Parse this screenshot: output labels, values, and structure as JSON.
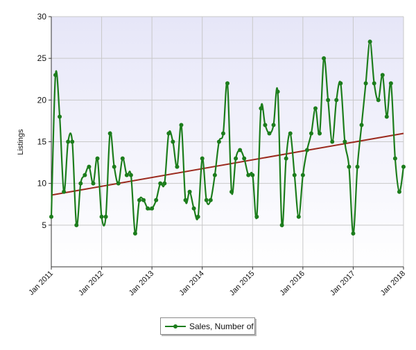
{
  "chart_data": {
    "type": "line",
    "title": "",
    "xlabel": "",
    "ylabel": "Listings",
    "ylim": [
      0,
      30
    ],
    "yticks": [
      5,
      10,
      15,
      20,
      25,
      30
    ],
    "xlim": [
      "2011-01",
      "2018-01"
    ],
    "xtick_labels": [
      "Jan 2011",
      "Jan 2012",
      "Jan 2013",
      "Jan 2014",
      "Jan 2015",
      "Jan 2016",
      "Jan 2017",
      "Jan 2018"
    ],
    "grid": true,
    "legend_position": "bottom-center",
    "series": [
      {
        "name": "Sales, Number of",
        "color": "#1c7d1c",
        "x": [
          "2011-01",
          "2011-02",
          "2011-03",
          "2011-04",
          "2011-05",
          "2011-06",
          "2011-07",
          "2011-08",
          "2011-09",
          "2011-10",
          "2011-11",
          "2011-12",
          "2012-01",
          "2012-02",
          "2012-03",
          "2012-04",
          "2012-05",
          "2012-06",
          "2012-07",
          "2012-08",
          "2012-09",
          "2012-10",
          "2012-11",
          "2012-12",
          "2013-01",
          "2013-02",
          "2013-03",
          "2013-04",
          "2013-05",
          "2013-06",
          "2013-07",
          "2013-08",
          "2013-09",
          "2013-10",
          "2013-11",
          "2013-12",
          "2014-01",
          "2014-02",
          "2014-03",
          "2014-04",
          "2014-05",
          "2014-06",
          "2014-07",
          "2014-08",
          "2014-09",
          "2014-10",
          "2014-11",
          "2014-12",
          "2015-01",
          "2015-02",
          "2015-03",
          "2015-04",
          "2015-05",
          "2015-06",
          "2015-07",
          "2015-08",
          "2015-09",
          "2015-10",
          "2015-11",
          "2015-12",
          "2016-01",
          "2016-02",
          "2016-03",
          "2016-04",
          "2016-05",
          "2016-06",
          "2016-07",
          "2016-08",
          "2016-09",
          "2016-10",
          "2016-11",
          "2016-12",
          "2017-01",
          "2017-02",
          "2017-03",
          "2017-04",
          "2017-05",
          "2017-06",
          "2017-07",
          "2017-08",
          "2017-09",
          "2017-10",
          "2017-11",
          "2017-12",
          "2018-01"
        ],
        "values": [
          6,
          23,
          18,
          9,
          15,
          15,
          5,
          10,
          11,
          12,
          10,
          13,
          6,
          6,
          16,
          12,
          10,
          13,
          11,
          11,
          4,
          8,
          8,
          7,
          7,
          8,
          10,
          10,
          16,
          15,
          12,
          17,
          8,
          9,
          7,
          6,
          13,
          8,
          8,
          11,
          15,
          16,
          22,
          9,
          13,
          14,
          13,
          11,
          11,
          6,
          19,
          17,
          16,
          17,
          21,
          5,
          13,
          16,
          11,
          6,
          11,
          14,
          16,
          19,
          16,
          25,
          20,
          15,
          20,
          22,
          15,
          12,
          4,
          12,
          17,
          22,
          27,
          22,
          20,
          23,
          18,
          22,
          13,
          9,
          12
        ]
      },
      {
        "name": "",
        "kind": "trend",
        "color": "#9b2a1e",
        "x": [
          "2011-01",
          "2018-01"
        ],
        "values": [
          8.6,
          16.0
        ]
      }
    ]
  }
}
